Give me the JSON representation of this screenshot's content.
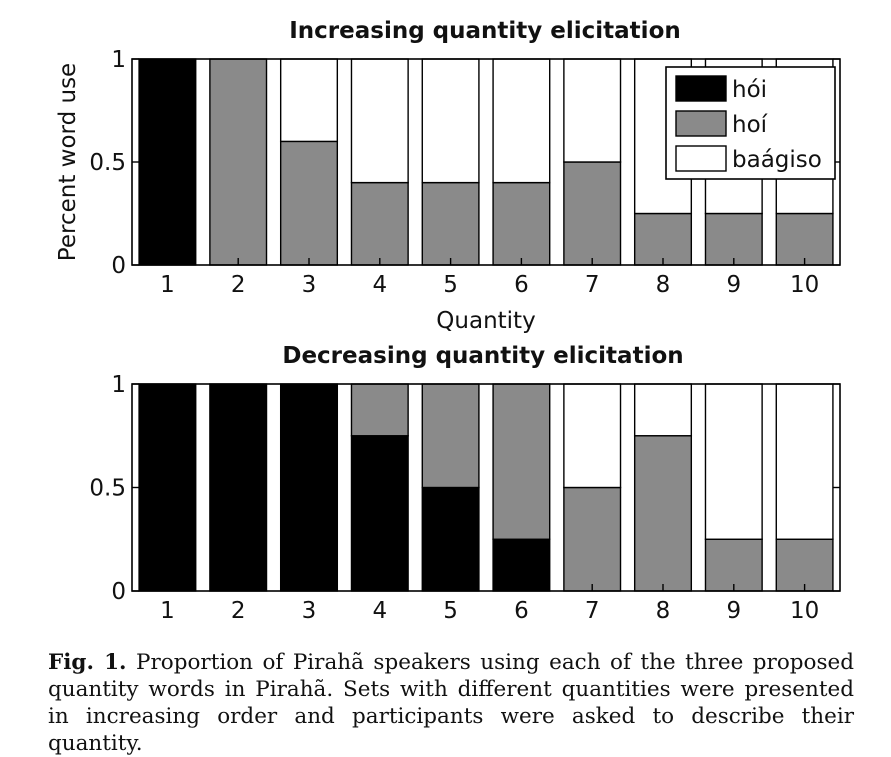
{
  "colors": {
    "hoi_tone1": "#000000",
    "hoi_tone2": "#8a8a8a",
    "baagiso": "#ffffff",
    "axis": "#000000"
  },
  "chart_data": [
    {
      "type": "bar",
      "stacked": true,
      "title": "Increasing quantity elicitation",
      "xlabel": "Quantity",
      "ylabel": "Percent word use",
      "ylim": [
        0,
        1
      ],
      "yticks": [
        "0",
        "0.5",
        "1"
      ],
      "categories": [
        "1",
        "2",
        "3",
        "4",
        "5",
        "6",
        "7",
        "8",
        "9",
        "10"
      ],
      "series": [
        {
          "name": "hói",
          "values": [
            1,
            0,
            0,
            0,
            0,
            0,
            0,
            0,
            0,
            0
          ]
        },
        {
          "name": "hoí",
          "values": [
            0,
            1,
            0.6,
            0.4,
            0.4,
            0.4,
            0.5,
            0.25,
            0.25,
            0.25
          ]
        },
        {
          "name": "baágiso",
          "values": [
            0,
            0,
            0.4,
            0.6,
            0.6,
            0.6,
            0.5,
            0.75,
            0.75,
            0.75
          ]
        }
      ],
      "legend": {
        "position": "top-right",
        "entries": [
          "hói",
          "hoí",
          "baágiso"
        ]
      }
    },
    {
      "type": "bar",
      "stacked": true,
      "title": "Decreasing quantity elicitation",
      "xlabel": "",
      "ylabel": "",
      "ylim": [
        0,
        1
      ],
      "yticks": [
        "0",
        "0.5",
        "1"
      ],
      "categories": [
        "1",
        "2",
        "3",
        "4",
        "5",
        "6",
        "7",
        "8",
        "9",
        "10"
      ],
      "series": [
        {
          "name": "hói",
          "values": [
            1,
            1,
            1,
            0.75,
            0.5,
            0.25,
            0,
            0,
            0,
            0
          ]
        },
        {
          "name": "hoí",
          "values": [
            0,
            0,
            0,
            0.25,
            0.5,
            0.75,
            0.5,
            0.75,
            0.25,
            0.25
          ]
        },
        {
          "name": "baágiso",
          "values": [
            0,
            0,
            0,
            0,
            0,
            0,
            0.5,
            0.25,
            0.75,
            0.75
          ]
        }
      ]
    }
  ],
  "caption": {
    "label": "Fig. 1.",
    "text": "Proportion of Pirahã speakers using each of the three proposed quantity words in Pirahã. Sets with different quantities were presented in increasing order and participants were asked to describe their quantity."
  }
}
